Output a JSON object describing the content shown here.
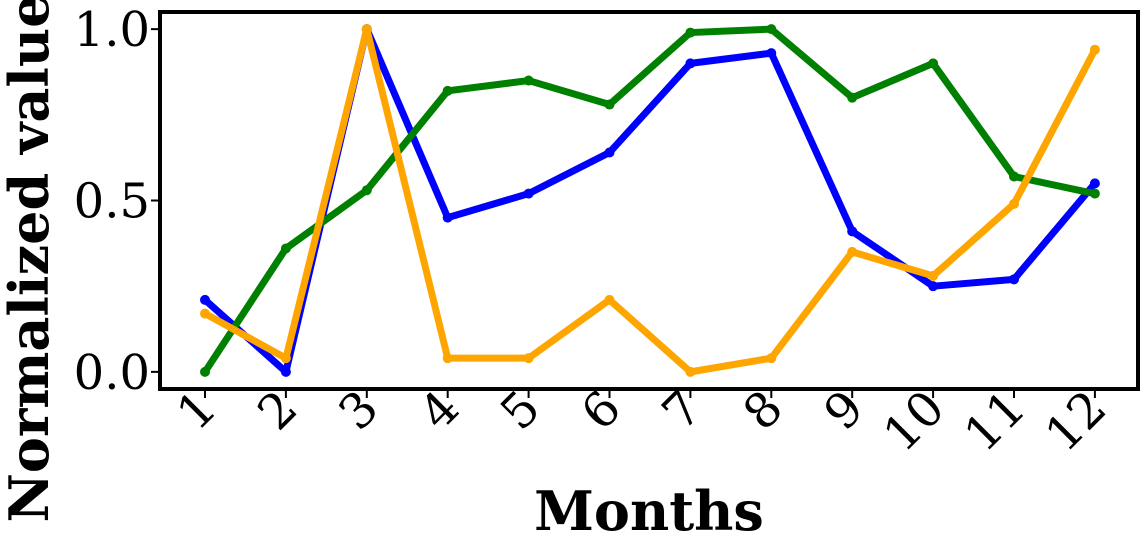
{
  "chart_data": {
    "type": "line",
    "xlabel": "Months",
    "ylabel": "Normalized value",
    "x": [
      1,
      2,
      3,
      4,
      5,
      6,
      7,
      8,
      9,
      10,
      11,
      12
    ],
    "x_tick_labels": [
      "1",
      "2",
      "3",
      "4",
      "5",
      "6",
      "7",
      "8",
      "9",
      "10",
      "11",
      "12"
    ],
    "y_ticks": [
      0.0,
      0.5,
      1.0
    ],
    "y_tick_labels": [
      "0.0",
      "0.5",
      "1.0"
    ],
    "ylim": [
      -0.05,
      1.05
    ],
    "grid": false,
    "series": [
      {
        "color": "#0000ff",
        "values": [
          0.21,
          0.0,
          1.0,
          0.45,
          0.52,
          0.64,
          0.9,
          0.93,
          0.41,
          0.25,
          0.27,
          0.55
        ]
      },
      {
        "color": "#008000",
        "values": [
          0.0,
          0.36,
          0.53,
          0.82,
          0.85,
          0.78,
          0.99,
          1.0,
          0.8,
          0.9,
          0.57,
          0.52
        ]
      },
      {
        "color": "#ffa500",
        "values": [
          0.17,
          0.04,
          1.0,
          0.04,
          0.04,
          0.21,
          0.0,
          0.04,
          0.35,
          0.28,
          0.49,
          0.94
        ]
      }
    ]
  }
}
